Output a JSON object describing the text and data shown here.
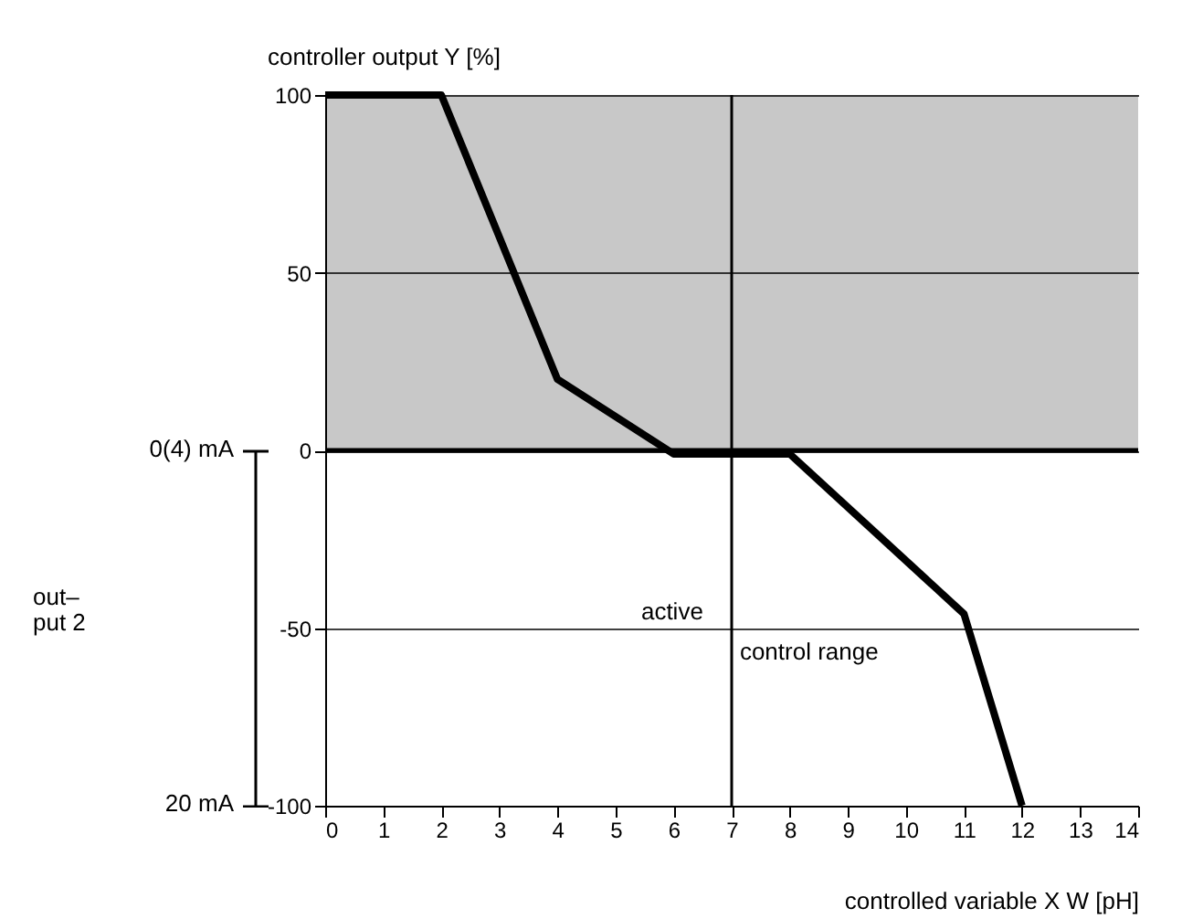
{
  "chart_data": {
    "type": "line",
    "xlabel": "controlled variable X W   [pH]",
    "ylabel": "controller output Y [%]",
    "x": [
      0,
      2,
      4,
      6,
      8,
      11,
      12
    ],
    "series": [
      {
        "color": "#000000",
        "values": [
          100,
          100,
          20,
          -1,
          -1,
          -46,
          -100
        ]
      }
    ],
    "xlim": [
      0,
      14
    ],
    "xticks": [
      0,
      1,
      2,
      3,
      4,
      5,
      6,
      7,
      8,
      9,
      10,
      11,
      12,
      13,
      14
    ],
    "ylim": [
      -100,
      100
    ],
    "yticks": [
      -100,
      -50,
      0,
      50,
      100
    ],
    "bands": [
      {
        "axis": "y",
        "from": 0,
        "to": 100,
        "color": "#c8c8c8"
      }
    ],
    "ref_lines": [
      {
        "axis": "x",
        "value": 7
      },
      {
        "axis": "y",
        "value": 0
      }
    ],
    "annotations": [
      "active",
      "control range",
      "0(4) mA",
      "out–put 2",
      "20 mA"
    ],
    "grid": "y",
    "marker": "none",
    "line_style": "solid"
  }
}
